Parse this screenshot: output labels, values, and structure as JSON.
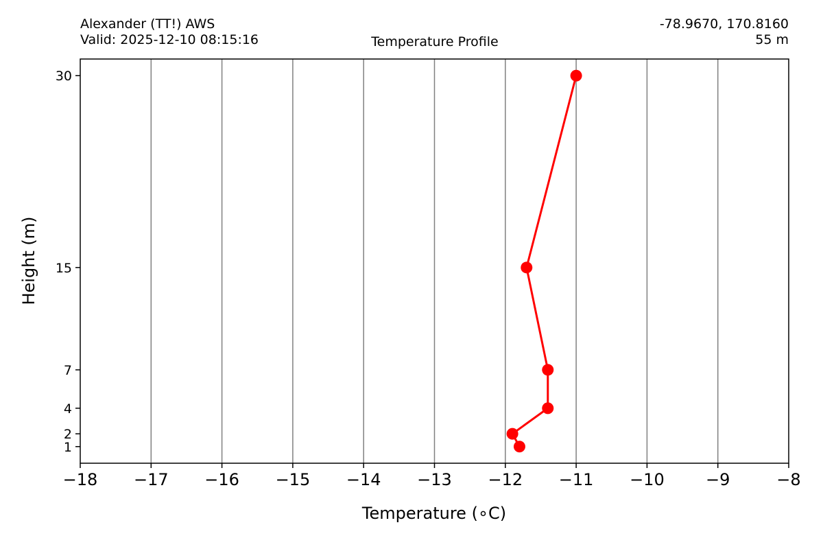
{
  "header": {
    "station": "Alexander (TT!) AWS",
    "valid": "Valid: 2025-12-10 08:15:16",
    "coords": "-78.9670, 170.8160",
    "elevation": "55 m"
  },
  "chart_data": {
    "type": "line",
    "title": "Temperature Profile",
    "xlabel": "Temperature (∘C)",
    "ylabel": "Height (m)",
    "xlim": [
      -18,
      -8
    ],
    "ylim": [
      -0.3,
      31.3
    ],
    "y_scale": "linear",
    "x_ticks": [
      -18,
      -17,
      -16,
      -15,
      -14,
      -13,
      -12,
      -11,
      -10,
      -9,
      -8
    ],
    "x_tick_labels": [
      "−18",
      "−17",
      "−16",
      "−15",
      "−14",
      "−13",
      "−12",
      "−11",
      "−10",
      "−9",
      "−8"
    ],
    "y_ticks": [
      1,
      2,
      4,
      7,
      15,
      30
    ],
    "y_tick_labels": [
      "1",
      "2",
      "4",
      "7",
      "15",
      "30"
    ],
    "grid": "vertical",
    "series": [
      {
        "color": "#ff0000",
        "marker": "circle",
        "points": [
          {
            "temperature": -11.8,
            "height": 1
          },
          {
            "temperature": -11.9,
            "height": 2
          },
          {
            "temperature": -11.4,
            "height": 4
          },
          {
            "temperature": -11.4,
            "height": 7
          },
          {
            "temperature": -11.7,
            "height": 15
          },
          {
            "temperature": -11.0,
            "height": 30
          }
        ]
      }
    ]
  }
}
